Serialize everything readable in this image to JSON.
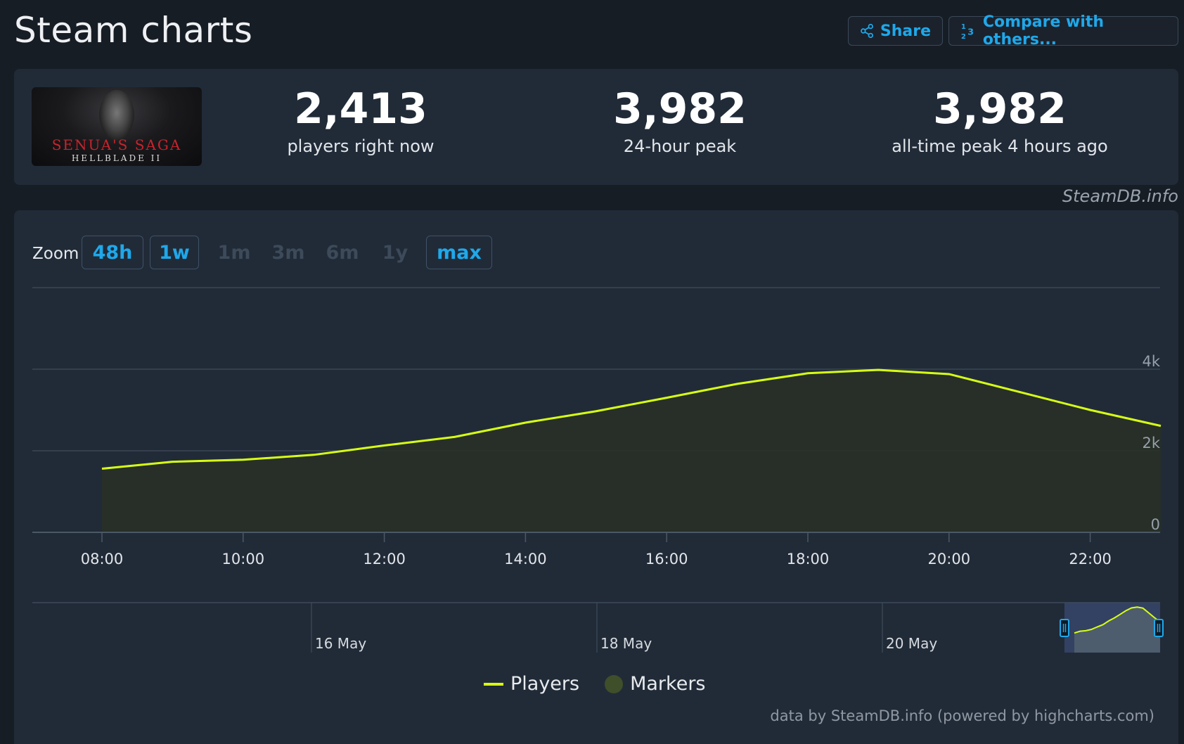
{
  "header": {
    "title": "Steam charts",
    "share_label": "Share",
    "compare_label": "Compare with others..."
  },
  "game": {
    "logo_line1": "SENUA'S SAGA",
    "logo_line2": "HELLBLADE II"
  },
  "stats": {
    "now_value": "2,413",
    "now_label": "players right now",
    "peak24_value": "3,982",
    "peak24_label": "24-hour peak",
    "alltime_value": "3,982",
    "alltime_label": "all-time peak 4 hours ago"
  },
  "credit_top": "SteamDB.info",
  "zoom": {
    "label": "Zoom",
    "buttons": [
      {
        "label": "48h",
        "enabled": true
      },
      {
        "label": "1w",
        "enabled": true
      },
      {
        "label": "1m",
        "enabled": false
      },
      {
        "label": "3m",
        "enabled": false
      },
      {
        "label": "6m",
        "enabled": false
      },
      {
        "label": "1y",
        "enabled": false
      },
      {
        "label": "max",
        "enabled": true
      }
    ]
  },
  "chart_data": {
    "type": "area",
    "series": [
      {
        "name": "Players",
        "color": "#d7ff14",
        "x": [
          "08:00",
          "09:00",
          "10:00",
          "11:00",
          "12:00",
          "13:00",
          "14:00",
          "15:00",
          "16:00",
          "17:00",
          "18:00",
          "19:00",
          "20:00",
          "21:00",
          "22:00",
          "23:00"
        ],
        "values": [
          1560,
          1730,
          1780,
          1900,
          2130,
          2340,
          2690,
          2970,
          3300,
          3640,
          3900,
          3982,
          3880,
          3440,
          3000,
          2610
        ]
      }
    ],
    "xticks": [
      "08:00",
      "10:00",
      "12:00",
      "14:00",
      "16:00",
      "18:00",
      "20:00",
      "22:00"
    ],
    "yticks": [
      "0",
      "2k",
      "4k"
    ],
    "ylim": [
      0,
      6000
    ],
    "navigator_labels": [
      "16 May",
      "18 May",
      "20 May"
    ],
    "legend": [
      "Players",
      "Markers"
    ],
    "marker_color": "#3f4f2a",
    "grid": true
  },
  "credit_bottom": "data by SteamDB.info (powered by highcharts.com)"
}
